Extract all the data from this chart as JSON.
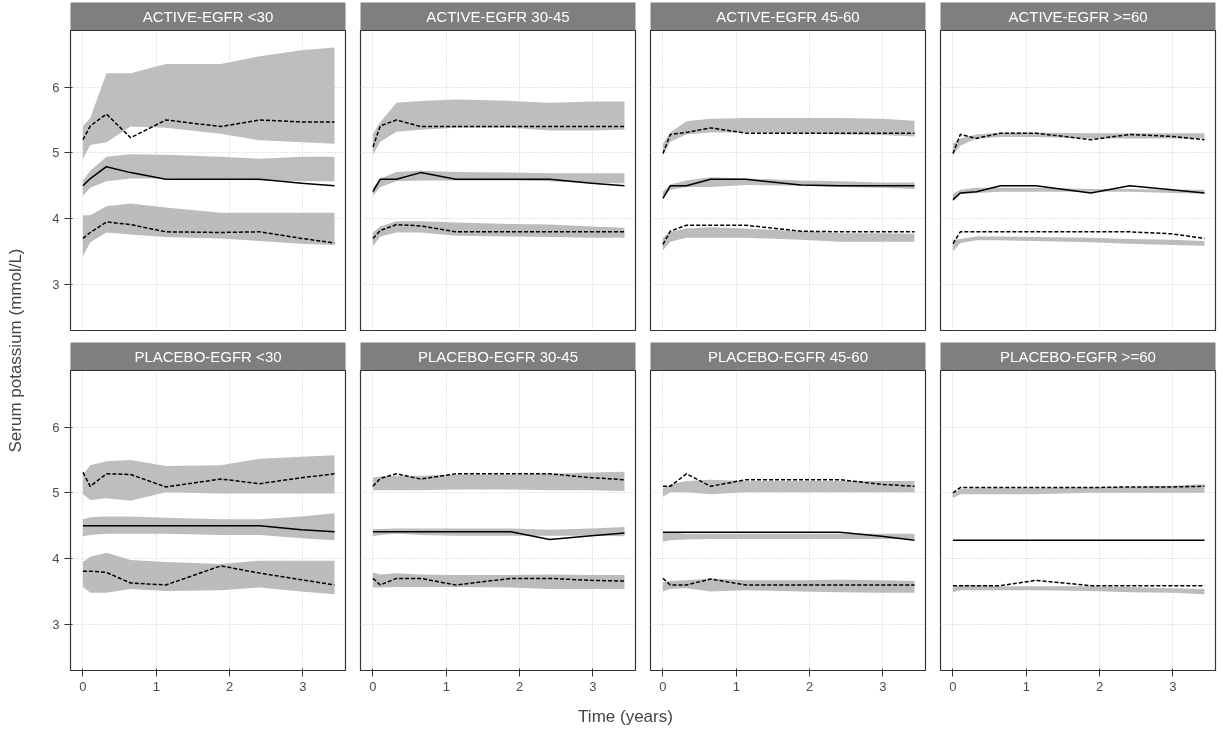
{
  "chart_data": [
    {
      "type": "line",
      "title": "ACTIVE-EGFR <30",
      "ylabel": "Serum potassium (mmol/L)",
      "x": [
        0,
        0.1,
        0.32,
        0.65,
        1.13,
        1.88,
        2.41,
        2.98,
        3.43
      ],
      "xlim": [
        -0.17,
        3.58
      ],
      "ylim": [
        2.3,
        6.86
      ],
      "xticks": [
        0,
        1,
        2,
        3
      ],
      "yticks": [
        3,
        4,
        5,
        6
      ],
      "grid": true,
      "tick_labels": "y",
      "series": [
        {
          "color": "#000000",
          "line_style": "dashed",
          "values": [
            5.2,
            5.41,
            5.59,
            5.23,
            5.5,
            5.4,
            5.5,
            5.47,
            5.47
          ],
          "lower": [
            4.91,
            5.12,
            5.16,
            5.4,
            5.38,
            5.29,
            5.19,
            5.16,
            5.14
          ],
          "upper": [
            5.41,
            5.53,
            6.21,
            6.21,
            6.35,
            6.35,
            6.47,
            6.56,
            6.6
          ]
        },
        {
          "color": "#000000",
          "line_style": "solid",
          "values": [
            4.5,
            4.61,
            4.79,
            4.7,
            4.6,
            4.6,
            4.6,
            4.54,
            4.5
          ],
          "lower": [
            4.35,
            4.47,
            4.57,
            4.61,
            4.61,
            4.6,
            4.58,
            4.57,
            4.57
          ],
          "upper": [
            4.58,
            4.73,
            4.94,
            4.98,
            4.97,
            4.94,
            4.91,
            4.94,
            4.94
          ]
        },
        {
          "color": "#000000",
          "line_style": "dashed",
          "values": [
            3.7,
            3.79,
            3.95,
            3.91,
            3.8,
            3.79,
            3.8,
            3.7,
            3.63
          ],
          "lower": [
            3.43,
            3.64,
            3.79,
            3.76,
            3.72,
            3.7,
            3.66,
            3.62,
            3.6
          ],
          "upper": [
            4.05,
            4.05,
            4.19,
            4.23,
            4.17,
            4.09,
            4.09,
            4.09,
            4.09
          ]
        }
      ]
    },
    {
      "type": "line",
      "title": "ACTIVE-EGFR 30-45",
      "x": [
        0,
        0.1,
        0.32,
        0.65,
        1.13,
        1.88,
        2.41,
        2.98,
        3.43
      ],
      "xlim": [
        -0.17,
        3.58
      ],
      "ylim": [
        2.3,
        6.86
      ],
      "xticks": [
        0,
        1,
        2,
        3
      ],
      "yticks": [
        3,
        4,
        5,
        6
      ],
      "grid": true,
      "tick_labels": false,
      "series": [
        {
          "color": "#000000",
          "line_style": "dashed",
          "values": [
            5.09,
            5.41,
            5.5,
            5.4,
            5.4,
            5.4,
            5.4,
            5.4,
            5.4
          ],
          "lower": [
            4.97,
            5.17,
            5.32,
            5.35,
            5.38,
            5.38,
            5.34,
            5.34,
            5.35
          ],
          "upper": [
            5.29,
            5.47,
            5.76,
            5.79,
            5.81,
            5.79,
            5.76,
            5.78,
            5.78
          ]
        },
        {
          "color": "#000000",
          "line_style": "solid",
          "values": [
            4.41,
            4.6,
            4.6,
            4.7,
            4.6,
            4.6,
            4.6,
            4.54,
            4.5
          ],
          "lower": [
            4.35,
            4.48,
            4.57,
            4.58,
            4.58,
            4.58,
            4.57,
            4.54,
            4.54
          ],
          "upper": [
            4.47,
            4.61,
            4.71,
            4.73,
            4.71,
            4.7,
            4.69,
            4.69,
            4.69
          ]
        },
        {
          "color": "#000000",
          "line_style": "dashed",
          "values": [
            3.7,
            3.82,
            3.91,
            3.89,
            3.8,
            3.8,
            3.8,
            3.8,
            3.8
          ],
          "lower": [
            3.58,
            3.73,
            3.79,
            3.79,
            3.74,
            3.73,
            3.72,
            3.71,
            3.71
          ],
          "upper": [
            3.79,
            3.88,
            3.96,
            3.96,
            3.94,
            3.92,
            3.91,
            3.88,
            3.86
          ]
        }
      ]
    },
    {
      "type": "line",
      "title": "ACTIVE-EGFR 45-60",
      "x": [
        0,
        0.1,
        0.32,
        0.65,
        1.13,
        1.88,
        2.41,
        2.98,
        3.43
      ],
      "xlim": [
        -0.17,
        3.58
      ],
      "ylim": [
        2.3,
        6.86
      ],
      "xticks": [
        0,
        1,
        2,
        3
      ],
      "yticks": [
        3,
        4,
        5,
        6
      ],
      "grid": true,
      "tick_labels": false,
      "series": [
        {
          "color": "#000000",
          "line_style": "dashed",
          "values": [
            4.99,
            5.28,
            5.31,
            5.38,
            5.3,
            5.3,
            5.3,
            5.3,
            5.3
          ],
          "lower": [
            4.96,
            5.17,
            5.28,
            5.31,
            5.31,
            5.3,
            5.28,
            5.27,
            5.25
          ],
          "upper": [
            5.14,
            5.31,
            5.48,
            5.52,
            5.53,
            5.53,
            5.53,
            5.52,
            5.49
          ]
        },
        {
          "color": "#000000",
          "line_style": "solid",
          "values": [
            4.31,
            4.5,
            4.5,
            4.6,
            4.6,
            4.51,
            4.5,
            4.5,
            4.5
          ],
          "lower": [
            4.31,
            4.44,
            4.48,
            4.48,
            4.51,
            4.5,
            4.48,
            4.47,
            4.45
          ],
          "upper": [
            4.41,
            4.52,
            4.58,
            4.63,
            4.61,
            4.58,
            4.57,
            4.55,
            4.55
          ]
        },
        {
          "color": "#000000",
          "line_style": "dashed",
          "values": [
            3.61,
            3.81,
            3.9,
            3.9,
            3.9,
            3.81,
            3.8,
            3.8,
            3.8
          ],
          "lower": [
            3.52,
            3.65,
            3.71,
            3.71,
            3.71,
            3.68,
            3.65,
            3.65,
            3.65
          ],
          "upper": [
            3.71,
            3.8,
            3.85,
            3.87,
            3.85,
            3.81,
            3.78,
            3.78,
            3.77
          ]
        }
      ]
    },
    {
      "type": "line",
      "title": "ACTIVE-EGFR >=60",
      "x": [
        0,
        0.1,
        0.32,
        0.65,
        1.13,
        1.88,
        2.41,
        2.98,
        3.43
      ],
      "xlim": [
        -0.17,
        3.58
      ],
      "ylim": [
        2.3,
        6.86
      ],
      "xticks": [
        0,
        1,
        2,
        3
      ],
      "yticks": [
        3,
        4,
        5,
        6
      ],
      "grid": true,
      "tick_labels": false,
      "series": [
        {
          "color": "#000000",
          "line_style": "dashed",
          "values": [
            4.99,
            5.28,
            5.22,
            5.3,
            5.3,
            5.2,
            5.28,
            5.25,
            5.2
          ],
          "lower": [
            4.96,
            5.11,
            5.22,
            5.24,
            5.24,
            5.22,
            5.22,
            5.22,
            5.22
          ],
          "upper": [
            5.14,
            5.22,
            5.28,
            5.31,
            5.31,
            5.3,
            5.3,
            5.3,
            5.3
          ]
        },
        {
          "color": "#000000",
          "line_style": "solid",
          "values": [
            4.29,
            4.39,
            4.41,
            4.5,
            4.5,
            4.39,
            4.5,
            4.44,
            4.39
          ],
          "lower": [
            4.26,
            4.37,
            4.39,
            4.41,
            4.41,
            4.41,
            4.41,
            4.39,
            4.38
          ],
          "upper": [
            4.38,
            4.44,
            4.47,
            4.47,
            4.47,
            4.45,
            4.45,
            4.44,
            4.44
          ]
        },
        {
          "color": "#000000",
          "line_style": "dashed",
          "values": [
            3.62,
            3.8,
            3.8,
            3.8,
            3.8,
            3.8,
            3.8,
            3.77,
            3.7
          ],
          "lower": [
            3.5,
            3.63,
            3.67,
            3.67,
            3.66,
            3.64,
            3.62,
            3.6,
            3.59
          ],
          "upper": [
            3.68,
            3.69,
            3.73,
            3.73,
            3.72,
            3.71,
            3.69,
            3.68,
            3.66
          ]
        }
      ]
    },
    {
      "type": "line",
      "title": "PLACEBO-EGFR <30",
      "x": [
        0,
        0.1,
        0.32,
        0.65,
        1.13,
        1.88,
        2.41,
        2.98,
        3.43
      ],
      "xlim": [
        -0.17,
        3.58
      ],
      "ylim": [
        2.3,
        6.86
      ],
      "xticks": [
        0,
        1,
        2,
        3
      ],
      "yticks": [
        3,
        4,
        5,
        6
      ],
      "grid": true,
      "series": [
        {
          "color": "#000000",
          "line_style": "dashed",
          "values": [
            5.31,
            5.1,
            5.29,
            5.28,
            5.09,
            5.21,
            5.14,
            5.23,
            5.29
          ],
          "lower": [
            4.98,
            4.89,
            4.92,
            4.88,
            5.01,
            4.99,
            4.99,
            4.99,
            4.99
          ],
          "upper": [
            5.28,
            5.42,
            5.48,
            5.5,
            5.41,
            5.42,
            5.52,
            5.55,
            5.57
          ]
        },
        {
          "color": "#000000",
          "line_style": "solid",
          "values": [
            4.5,
            4.5,
            4.5,
            4.5,
            4.5,
            4.5,
            4.5,
            4.44,
            4.41
          ],
          "lower": [
            4.34,
            4.36,
            4.38,
            4.38,
            4.38,
            4.36,
            4.36,
            4.31,
            4.28
          ],
          "upper": [
            4.6,
            4.63,
            4.64,
            4.64,
            4.62,
            4.6,
            4.6,
            4.64,
            4.69
          ]
        },
        {
          "color": "#000000",
          "line_style": "dashed",
          "values": [
            3.81,
            3.81,
            3.79,
            3.63,
            3.6,
            3.89,
            3.78,
            3.68,
            3.6
          ],
          "lower": [
            3.57,
            3.48,
            3.48,
            3.54,
            3.51,
            3.52,
            3.56,
            3.5,
            3.46
          ],
          "upper": [
            3.95,
            4.03,
            4.09,
            3.98,
            3.95,
            3.92,
            3.97,
            3.97,
            3.97
          ]
        }
      ]
    },
    {
      "type": "line",
      "title": "PLACEBO-EGFR 30-45",
      "xlabel": "Time (years)",
      "x": [
        0,
        0.1,
        0.32,
        0.65,
        1.13,
        1.88,
        2.41,
        2.98,
        3.43
      ],
      "xlim": [
        -0.17,
        3.58
      ],
      "ylim": [
        2.3,
        6.86
      ],
      "xticks": [
        0,
        1,
        2,
        3
      ],
      "yticks": [
        3,
        4,
        5,
        6
      ],
      "grid": true,
      "tick_labels": "x",
      "series": [
        {
          "color": "#000000",
          "line_style": "dashed",
          "values": [
            5.1,
            5.22,
            5.29,
            5.21,
            5.29,
            5.29,
            5.29,
            5.23,
            5.2
          ],
          "lower": [
            5.04,
            5.04,
            5.04,
            5.04,
            5.05,
            5.05,
            5.04,
            5.04,
            5.03
          ],
          "upper": [
            5.23,
            5.25,
            5.26,
            5.26,
            5.28,
            5.28,
            5.29,
            5.31,
            5.32
          ]
        },
        {
          "color": "#000000",
          "line_style": "solid",
          "values": [
            4.41,
            4.41,
            4.41,
            4.41,
            4.41,
            4.41,
            4.29,
            4.35,
            4.39
          ],
          "lower": [
            4.34,
            4.36,
            4.38,
            4.36,
            4.35,
            4.35,
            4.35,
            4.35,
            4.34
          ],
          "upper": [
            4.45,
            4.45,
            4.46,
            4.46,
            4.46,
            4.46,
            4.44,
            4.46,
            4.48
          ]
        },
        {
          "color": "#000000",
          "line_style": "dashed",
          "values": [
            3.7,
            3.6,
            3.7,
            3.7,
            3.6,
            3.7,
            3.7,
            3.67,
            3.66
          ],
          "lower": [
            3.56,
            3.56,
            3.57,
            3.57,
            3.57,
            3.56,
            3.54,
            3.54,
            3.54
          ],
          "upper": [
            3.79,
            3.76,
            3.78,
            3.76,
            3.75,
            3.75,
            3.76,
            3.75,
            3.75
          ]
        }
      ]
    },
    {
      "type": "line",
      "title": "PLACEBO-EGFR 45-60",
      "x": [
        0,
        0.1,
        0.32,
        0.65,
        1.13,
        1.88,
        2.41,
        2.98,
        3.43
      ],
      "xlim": [
        -0.17,
        3.58
      ],
      "ylim": [
        2.3,
        6.86
      ],
      "xticks": [
        0,
        1,
        2,
        3
      ],
      "yticks": [
        3,
        4,
        5,
        6
      ],
      "grid": true,
      "tick_labels": "x",
      "series": [
        {
          "color": "#000000",
          "line_style": "dashed",
          "values": [
            5.1,
            5.1,
            5.29,
            5.1,
            5.2,
            5.2,
            5.2,
            5.13,
            5.1
          ],
          "lower": [
            4.94,
            5.01,
            5.01,
            4.98,
            5.01,
            5.01,
            5.01,
            5.01,
            5.01
          ],
          "upper": [
            5.07,
            5.13,
            5.18,
            5.2,
            5.18,
            5.18,
            5.18,
            5.18,
            5.18
          ]
        },
        {
          "color": "#000000",
          "line_style": "solid",
          "values": [
            4.4,
            4.4,
            4.4,
            4.4,
            4.4,
            4.4,
            4.4,
            4.34,
            4.28
          ],
          "lower": [
            4.26,
            4.28,
            4.29,
            4.3,
            4.3,
            4.3,
            4.3,
            4.3,
            4.3
          ],
          "upper": [
            4.4,
            4.4,
            4.38,
            4.38,
            4.38,
            4.38,
            4.38,
            4.38,
            4.38
          ]
        },
        {
          "color": "#000000",
          "line_style": "dashed",
          "values": [
            3.7,
            3.6,
            3.6,
            3.69,
            3.6,
            3.6,
            3.6,
            3.6,
            3.6
          ],
          "lower": [
            3.5,
            3.54,
            3.55,
            3.5,
            3.52,
            3.5,
            3.49,
            3.48,
            3.48
          ],
          "upper": [
            3.64,
            3.66,
            3.67,
            3.7,
            3.67,
            3.67,
            3.68,
            3.67,
            3.66
          ]
        }
      ]
    },
    {
      "type": "line",
      "title": "PLACEBO-EGFR >=60",
      "x": [
        0,
        0.1,
        0.32,
        0.65,
        1.13,
        1.88,
        2.41,
        2.98,
        3.43
      ],
      "xlim": [
        -0.17,
        3.58
      ],
      "ylim": [
        2.3,
        6.86
      ],
      "xticks": [
        0,
        1,
        2,
        3
      ],
      "yticks": [
        3,
        4,
        5,
        6
      ],
      "grid": true,
      "tick_labels": "x",
      "series": [
        {
          "color": "#000000",
          "line_style": "dashed",
          "values": [
            5.0,
            5.08,
            5.08,
            5.08,
            5.08,
            5.08,
            5.09,
            5.09,
            5.1
          ],
          "lower": [
            4.92,
            4.98,
            4.98,
            4.98,
            4.98,
            5.0,
            5.0,
            5.0,
            5.0
          ],
          "upper": [
            4.98,
            5.06,
            5.07,
            5.07,
            5.07,
            5.08,
            5.09,
            5.11,
            5.13
          ]
        },
        {
          "color": "#000000",
          "line_style": "solid",
          "values": [
            4.28,
            4.28,
            4.28,
            4.28,
            4.28,
            4.28,
            4.28,
            4.28,
            4.28
          ]
        },
        {
          "color": "#000000",
          "line_style": "dashed",
          "values": [
            3.59,
            3.59,
            3.59,
            3.59,
            3.67,
            3.59,
            3.59,
            3.59,
            3.59
          ],
          "lower": [
            3.49,
            3.52,
            3.52,
            3.52,
            3.52,
            3.51,
            3.49,
            3.48,
            3.46
          ],
          "upper": [
            3.56,
            3.6,
            3.6,
            3.58,
            3.58,
            3.58,
            3.57,
            3.55,
            3.54
          ]
        }
      ]
    }
  ]
}
